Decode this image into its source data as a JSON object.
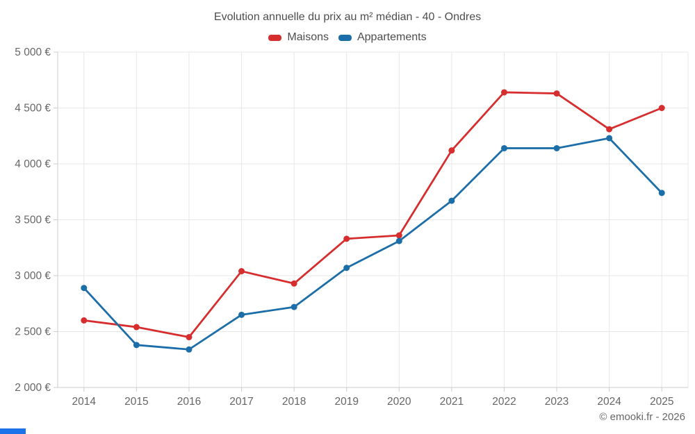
{
  "chart_data": {
    "type": "line",
    "title": "Evolution annuelle du prix au m² médian - 40 - Ondres",
    "categories": [
      "2014",
      "2015",
      "2016",
      "2017",
      "2018",
      "2019",
      "2020",
      "2021",
      "2022",
      "2023",
      "2024",
      "2025"
    ],
    "series": [
      {
        "name": "Maisons",
        "color": "#d62e2e",
        "values": [
          2600,
          2540,
          2450,
          3040,
          2930,
          3330,
          3360,
          4120,
          4640,
          4630,
          4310,
          4500
        ]
      },
      {
        "name": "Appartements",
        "color": "#1c6ea8",
        "values": [
          2890,
          2380,
          2340,
          2650,
          2720,
          3070,
          3310,
          3670,
          4140,
          4140,
          4230,
          3740
        ]
      }
    ],
    "ylim": [
      2000,
      5000
    ],
    "yticks": [
      {
        "value": 2000,
        "label": "2 000 €"
      },
      {
        "value": 2500,
        "label": "2 500 €"
      },
      {
        "value": 3000,
        "label": "3 000 €"
      },
      {
        "value": 3500,
        "label": "3 500 €"
      },
      {
        "value": 4000,
        "label": "4 000 €"
      },
      {
        "value": 4500,
        "label": "4 500 €"
      },
      {
        "value": 5000,
        "label": "5 000 €"
      }
    ],
    "grid": true,
    "legend_position": "top",
    "xlabel": "",
    "ylabel": ""
  },
  "colors": {
    "grid_line": "#e7e7e7",
    "axis_line": "#cccccc",
    "axis_label": "#666666",
    "title_text": "#4d4d4d",
    "accent_bar": "#1a73e8"
  },
  "footer": {
    "copyright": "© emooki.fr - 2026"
  }
}
